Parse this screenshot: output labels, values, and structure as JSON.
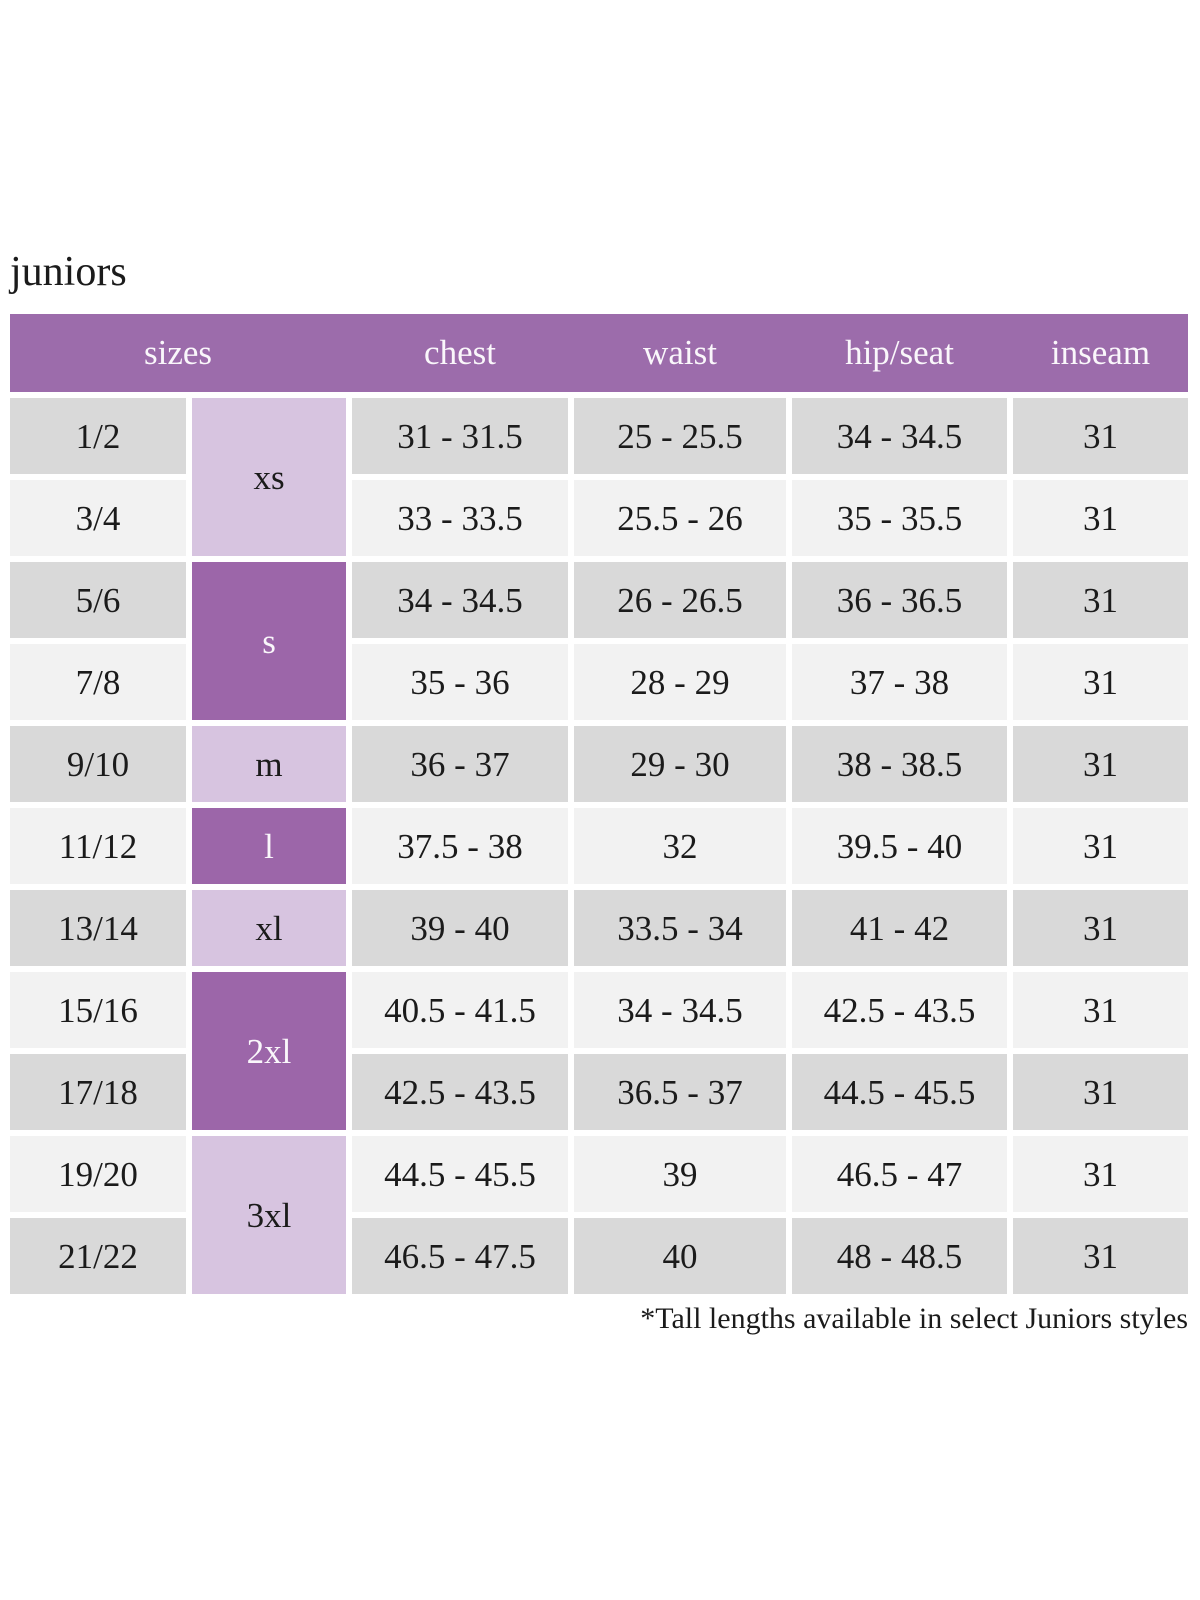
{
  "page": {
    "title": "juniors",
    "footnote": "*Tall lengths available in select Juniors styles"
  },
  "table": {
    "headers": {
      "sizes": "sizes",
      "chest": "chest",
      "waist": "waist",
      "hip_seat": "hip/seat",
      "inseam": "inseam"
    },
    "size_groups": [
      {
        "label": "xs",
        "span": 2,
        "tone": "light"
      },
      {
        "label": "s",
        "span": 2,
        "tone": "dark"
      },
      {
        "label": "m",
        "span": 1,
        "tone": "light"
      },
      {
        "label": "l",
        "span": 1,
        "tone": "dark"
      },
      {
        "label": "xl",
        "span": 1,
        "tone": "light"
      },
      {
        "label": "2xl",
        "span": 2,
        "tone": "dark"
      },
      {
        "label": "3xl",
        "span": 2,
        "tone": "light"
      }
    ],
    "rows": [
      {
        "size": "1/2",
        "group": "xs",
        "chest": "31 - 31.5",
        "waist": "25 - 25.5",
        "hip_seat": "34 - 34.5",
        "inseam": "31"
      },
      {
        "size": "3/4",
        "group": "xs",
        "chest": "33 - 33.5",
        "waist": "25.5 - 26",
        "hip_seat": "35 - 35.5",
        "inseam": "31"
      },
      {
        "size": "5/6",
        "group": "s",
        "chest": "34 - 34.5",
        "waist": "26 - 26.5",
        "hip_seat": "36 - 36.5",
        "inseam": "31"
      },
      {
        "size": "7/8",
        "group": "s",
        "chest": "35 - 36",
        "waist": "28 - 29",
        "hip_seat": "37 - 38",
        "inseam": "31"
      },
      {
        "size": "9/10",
        "group": "m",
        "chest": "36 - 37",
        "waist": "29 - 30",
        "hip_seat": "38 - 38.5",
        "inseam": "31"
      },
      {
        "size": "11/12",
        "group": "l",
        "chest": "37.5 - 38",
        "waist": "32",
        "hip_seat": "39.5 - 40",
        "inseam": "31"
      },
      {
        "size": "13/14",
        "group": "xl",
        "chest": "39 - 40",
        "waist": "33.5 - 34",
        "hip_seat": "41 - 42",
        "inseam": "31"
      },
      {
        "size": "15/16",
        "group": "2xl",
        "chest": "40.5 - 41.5",
        "waist": "34 - 34.5",
        "hip_seat": "42.5 - 43.5",
        "inseam": "31"
      },
      {
        "size": "17/18",
        "group": "2xl",
        "chest": "42.5 - 43.5",
        "waist": "36.5 - 37",
        "hip_seat": "44.5 - 45.5",
        "inseam": "31"
      },
      {
        "size": "19/20",
        "group": "3xl",
        "chest": "44.5 - 45.5",
        "waist": "39",
        "hip_seat": "46.5 - 47",
        "inseam": "31"
      },
      {
        "size": "21/22",
        "group": "3xl",
        "chest": "46.5 - 47.5",
        "waist": "40",
        "hip_seat": "48 - 48.5",
        "inseam": "31"
      }
    ]
  },
  "colors": {
    "background": "#ffffff",
    "header_purple": "#9c6cab",
    "group_dark_purple": "#9c66a9",
    "group_light_lavender": "#d7c4e0",
    "row_gray": "#d9d9d9",
    "row_light": "#f2f2f2",
    "text_dark": "#1b1b1b",
    "header_text": "#faf7fb"
  }
}
